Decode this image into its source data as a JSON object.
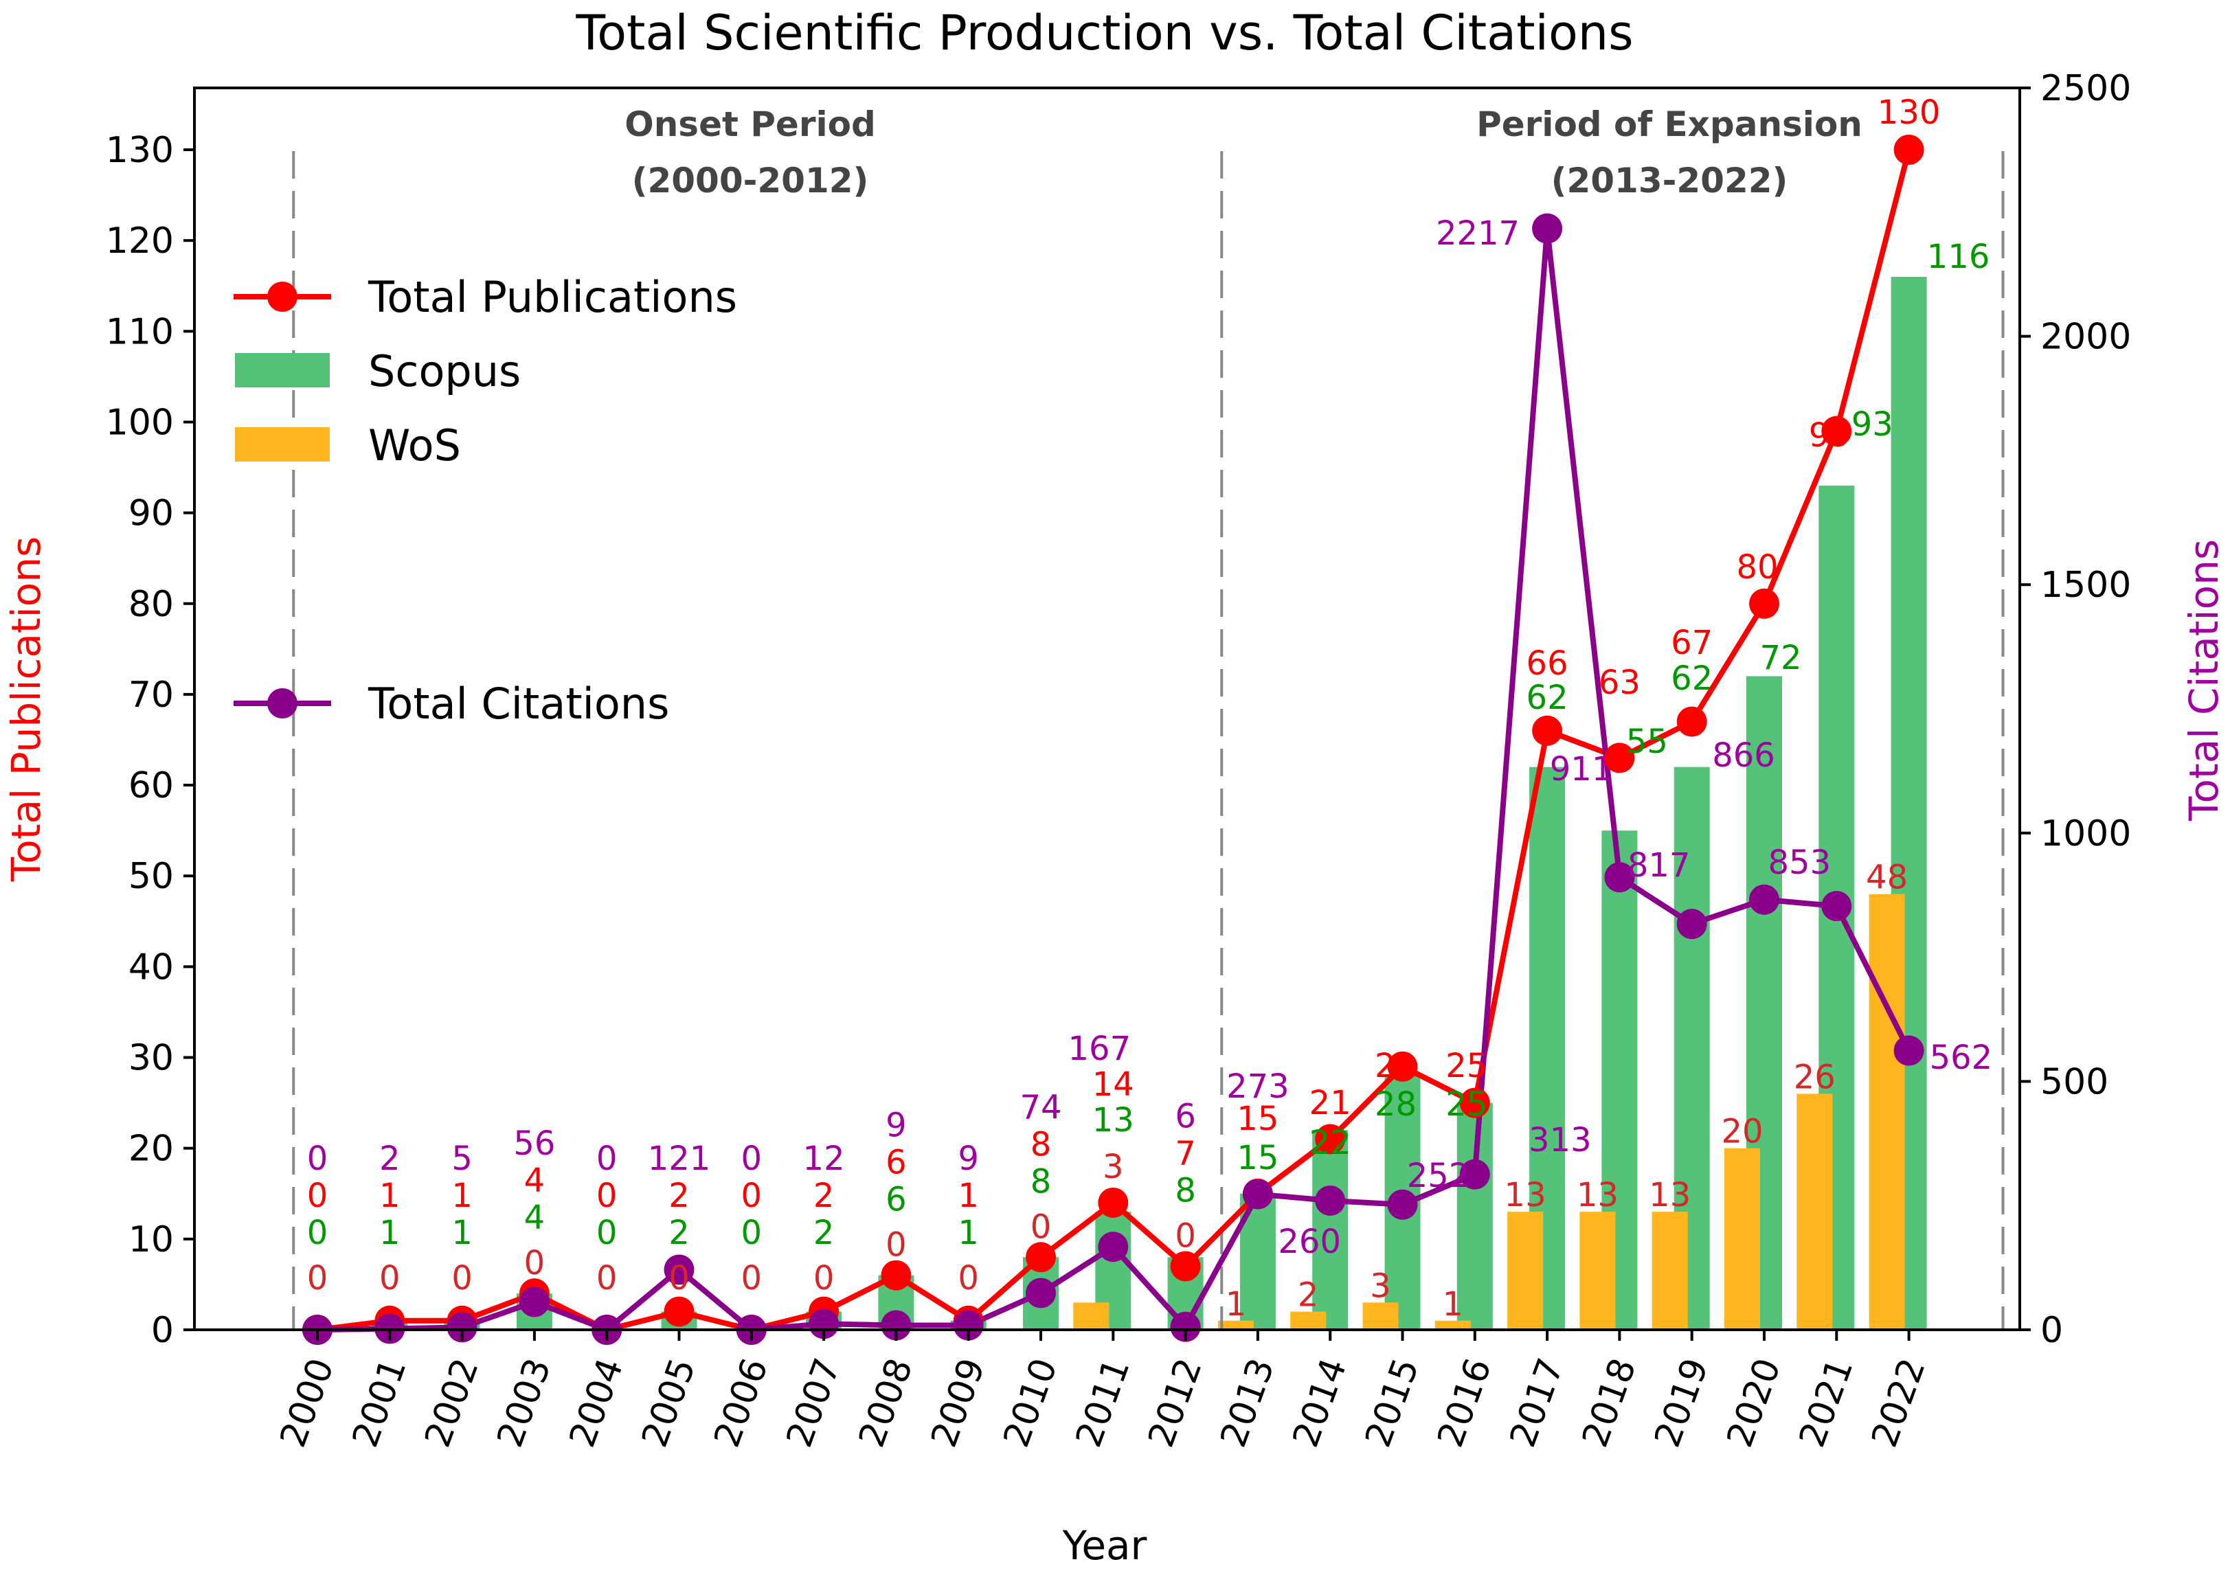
{
  "chart_data": {
    "type": "bar+line",
    "title": "Total Scientific Production vs. Total Citations",
    "xlabel": "Year",
    "ylabel_left": "Total Publications",
    "ylabel_right": "Total Citations",
    "ylim_left": [
      0,
      130
    ],
    "ylim_right": [
      0,
      2500
    ],
    "yticks_left": [
      "0",
      "10",
      "20",
      "30",
      "40",
      "50",
      "60",
      "70",
      "80",
      "90",
      "100",
      "110",
      "120",
      "130"
    ],
    "yticks_right": [
      "0",
      "500",
      "1000",
      "1500",
      "2000",
      "2500"
    ],
    "categories": [
      "2000",
      "2001",
      "2002",
      "2003",
      "2004",
      "2005",
      "2006",
      "2007",
      "2008",
      "2009",
      "2010",
      "2011",
      "2012",
      "2013",
      "2014",
      "2015",
      "2016",
      "2017",
      "2018",
      "2019",
      "2020",
      "2021",
      "2022"
    ],
    "series": [
      {
        "name": "Total Publications",
        "type": "line",
        "color": "#ff0000",
        "axis": "left",
        "values": [
          0,
          1,
          1,
          4,
          0,
          2,
          0,
          2,
          6,
          1,
          8,
          14,
          7,
          15,
          21,
          29,
          25,
          66,
          63,
          67,
          80,
          99,
          130
        ]
      },
      {
        "name": "Scopus",
        "type": "bar",
        "color": "#55c27a",
        "axis": "left",
        "values": [
          0,
          1,
          1,
          4,
          0,
          2,
          0,
          2,
          6,
          1,
          8,
          13,
          8,
          15,
          22,
          28,
          25,
          62,
          55,
          62,
          72,
          93,
          116
        ]
      },
      {
        "name": "WoS",
        "type": "bar",
        "color": "#ffb61e",
        "axis": "left",
        "values": [
          0,
          0,
          0,
          0,
          0,
          0,
          0,
          0,
          0,
          0,
          0,
          3,
          0,
          1,
          2,
          3,
          1,
          13,
          13,
          13,
          20,
          26,
          48
        ]
      },
      {
        "name": "Total Citations",
        "type": "line",
        "color": "#8b008b",
        "axis": "right",
        "values": [
          0,
          2,
          5,
          56,
          0,
          121,
          0,
          12,
          9,
          9,
          74,
          167,
          6,
          273,
          260,
          252,
          313,
          2217,
          911,
          817,
          866,
          853,
          562
        ]
      }
    ],
    "legend": {
      "position": "top-left",
      "entries": [
        "Total Publications",
        "Scopus",
        "WoS",
        "Total Citations"
      ]
    },
    "annotations": [
      {
        "text": "Onset Period",
        "subtext": "(2000-2012)"
      },
      {
        "text": "Period of Expansion",
        "subtext": "(2013-2022)"
      }
    ],
    "label_colors": {
      "publications": "#ff0000",
      "scopus": "#009900",
      "wos": "#d62728",
      "citations": "#a000a0"
    }
  }
}
